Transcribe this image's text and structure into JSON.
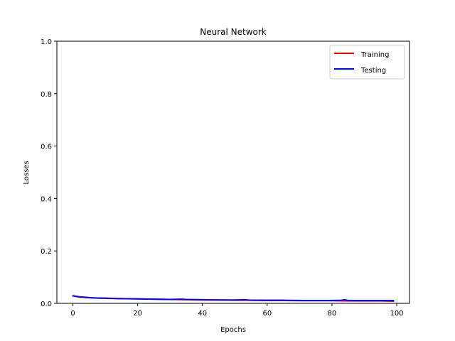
{
  "chart_data": {
    "type": "line",
    "title": "Neural Network",
    "xlabel": "Epochs",
    "ylabel": "Losses",
    "xlim": [
      -4.95,
      103.95
    ],
    "ylim": [
      0,
      1.0
    ],
    "xticks": [
      0,
      20,
      40,
      60,
      80,
      100
    ],
    "xtick_labels": [
      "0",
      "20",
      "40",
      "60",
      "80",
      "100"
    ],
    "yticks": [
      0.0,
      0.2,
      0.4,
      0.6,
      0.8,
      1.0
    ],
    "ytick_labels": [
      "0.0",
      "0.2",
      "0.4",
      "0.6",
      "0.8",
      "1.0"
    ],
    "grid": false,
    "legend_position": "top-right",
    "series": [
      {
        "name": "Training",
        "color": "#ff0000",
        "x": [
          0,
          2,
          4,
          6,
          8,
          10,
          15,
          20,
          25,
          30,
          35,
          40,
          45,
          50,
          55,
          60,
          65,
          70,
          75,
          80,
          85,
          90,
          95,
          99
        ],
        "y": [
          0.028,
          0.024,
          0.022,
          0.021,
          0.02,
          0.019,
          0.018,
          0.017,
          0.016,
          0.015,
          0.014,
          0.013,
          0.013,
          0.012,
          0.012,
          0.011,
          0.011,
          0.01,
          0.01,
          0.01,
          0.009,
          0.009,
          0.009,
          0.008
        ]
      },
      {
        "name": "Testing",
        "color": "#0000ff",
        "x": [
          0,
          2,
          4,
          6,
          8,
          10,
          12,
          15,
          20,
          25,
          30,
          33,
          35,
          40,
          45,
          50,
          53,
          55,
          60,
          65,
          70,
          75,
          80,
          83,
          84,
          85,
          90,
          95,
          99
        ],
        "y": [
          0.029,
          0.025,
          0.023,
          0.021,
          0.02,
          0.02,
          0.019,
          0.018,
          0.017,
          0.016,
          0.015,
          0.016,
          0.015,
          0.014,
          0.013,
          0.013,
          0.014,
          0.012,
          0.012,
          0.012,
          0.011,
          0.011,
          0.011,
          0.012,
          0.014,
          0.011,
          0.011,
          0.011,
          0.011
        ]
      }
    ]
  }
}
